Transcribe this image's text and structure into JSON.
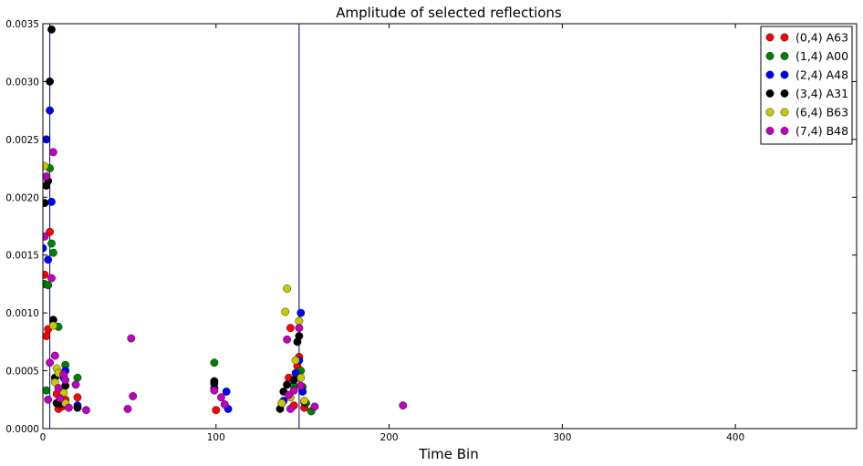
{
  "chart_data": {
    "type": "scatter",
    "title": "Amplitude of selected reflections",
    "xlabel": "Time Bin",
    "ylabel": "",
    "xlim": [
      0,
      470
    ],
    "ylim": [
      0,
      0.0035
    ],
    "x_ticks": [
      "0",
      "100",
      "200",
      "300",
      "400"
    ],
    "y_ticks": [
      "0.0000",
      "0.0005",
      "0.0010",
      "0.0015",
      "0.0020",
      "0.0025",
      "0.0030",
      "0.0035"
    ],
    "grid": false,
    "legend_position": "top-right",
    "vertical_lines": [
      4,
      148
    ],
    "series": [
      {
        "name": "(0,4) A63",
        "color": "#ff0000",
        "points": [
          [
            1,
            0.00133
          ],
          [
            2,
            0.0008
          ],
          [
            3,
            0.00086
          ],
          [
            4,
            0.0017
          ],
          [
            8,
            0.0003
          ],
          [
            9,
            0.00017
          ],
          [
            11,
            0.00019
          ],
          [
            13,
            0.00025
          ],
          [
            20,
            0.00027
          ],
          [
            100,
            0.00016
          ],
          [
            142,
            0.00044
          ],
          [
            143,
            0.00087
          ],
          [
            145,
            0.0002
          ],
          [
            147,
            0.00054
          ],
          [
            148,
            0.00062
          ],
          [
            151,
            0.00018
          ]
        ]
      },
      {
        "name": "(1,4) A00",
        "color": "#008000",
        "points": [
          [
            1,
            0.00125
          ],
          [
            2,
            0.00033
          ],
          [
            3,
            0.00124
          ],
          [
            4,
            0.00225
          ],
          [
            5,
            0.0016
          ],
          [
            6,
            0.00152
          ],
          [
            9,
            0.00088
          ],
          [
            13,
            0.00055
          ],
          [
            20,
            0.00044
          ],
          [
            99,
            0.00057
          ],
          [
            138,
            0.00022
          ],
          [
            145,
            0.00037
          ],
          [
            149,
            0.0005
          ],
          [
            150,
            0.00036
          ],
          [
            152,
            0.00022
          ],
          [
            155,
            0.00015
          ]
        ]
      },
      {
        "name": "(2,4) A48",
        "color": "#0000ff",
        "points": [
          [
            0,
            0.00156
          ],
          [
            2,
            0.0025
          ],
          [
            3,
            0.00146
          ],
          [
            4,
            0.00275
          ],
          [
            5,
            0.00196
          ],
          [
            8,
            0.00022
          ],
          [
            12,
            0.00044
          ],
          [
            13,
            0.0005
          ],
          [
            20,
            0.0002
          ],
          [
            99,
            0.00035
          ],
          [
            106,
            0.00032
          ],
          [
            107,
            0.00017
          ],
          [
            139,
            0.00024
          ],
          [
            146,
            0.00048
          ],
          [
            148,
            0.00059
          ],
          [
            149,
            0.001
          ],
          [
            150,
            0.00032
          ]
        ]
      },
      {
        "name": "(3,4) A31",
        "color": "#000000",
        "points": [
          [
            1,
            0.00195
          ],
          [
            2,
            0.0021
          ],
          [
            3,
            0.00214
          ],
          [
            4,
            0.003
          ],
          [
            5,
            0.00345
          ],
          [
            6,
            0.00094
          ],
          [
            7,
            0.00044
          ],
          [
            8,
            0.00022
          ],
          [
            10,
            0.00021
          ],
          [
            13,
            0.00037
          ],
          [
            20,
            0.00018
          ],
          [
            99,
            0.00041
          ],
          [
            99,
            0.00039
          ],
          [
            137,
            0.00017
          ],
          [
            139,
            0.00032
          ],
          [
            141,
            0.00038
          ],
          [
            145,
            0.00042
          ],
          [
            147,
            0.00075
          ],
          [
            148,
            0.0008
          ],
          [
            151,
            0.00023
          ]
        ]
      },
      {
        "name": "(6,4) B63",
        "color": "#c8c800",
        "points": [
          [
            1,
            0.00227
          ],
          [
            6,
            0.00089
          ],
          [
            7,
            0.0004
          ],
          [
            8,
            0.00052
          ],
          [
            9,
            0.00048
          ],
          [
            12,
            0.00031
          ],
          [
            13,
            0.00022
          ],
          [
            138,
            0.00022
          ],
          [
            140,
            0.00101
          ],
          [
            141,
            0.00121
          ],
          [
            143,
            0.00027
          ],
          [
            146,
            0.00059
          ],
          [
            148,
            0.00093
          ],
          [
            149,
            0.00044
          ],
          [
            151,
            0.00024
          ]
        ]
      },
      {
        "name": "(7,4) B48",
        "color": "#c000c0",
        "points": [
          [
            1,
            0.00166
          ],
          [
            2,
            0.00218
          ],
          [
            3,
            0.00025
          ],
          [
            4,
            0.00057
          ],
          [
            5,
            0.0013
          ],
          [
            6,
            0.00239
          ],
          [
            7,
            0.00063
          ],
          [
            9,
            0.00035
          ],
          [
            10,
            0.00026
          ],
          [
            12,
            0.00047
          ],
          [
            13,
            0.00042
          ],
          [
            15,
            0.00018
          ],
          [
            19,
            0.00038
          ],
          [
            25,
            0.00016
          ],
          [
            49,
            0.00017
          ],
          [
            51,
            0.00078
          ],
          [
            52,
            0.00028
          ],
          [
            99,
            0.00033
          ],
          [
            103,
            0.00027
          ],
          [
            105,
            0.00021
          ],
          [
            141,
            0.00077
          ],
          [
            142,
            0.00029
          ],
          [
            143,
            0.00017
          ],
          [
            145,
            0.00033
          ],
          [
            148,
            0.00087
          ],
          [
            149,
            0.00037
          ],
          [
            157,
            0.00019
          ],
          [
            208,
            0.0002
          ]
        ]
      }
    ]
  }
}
